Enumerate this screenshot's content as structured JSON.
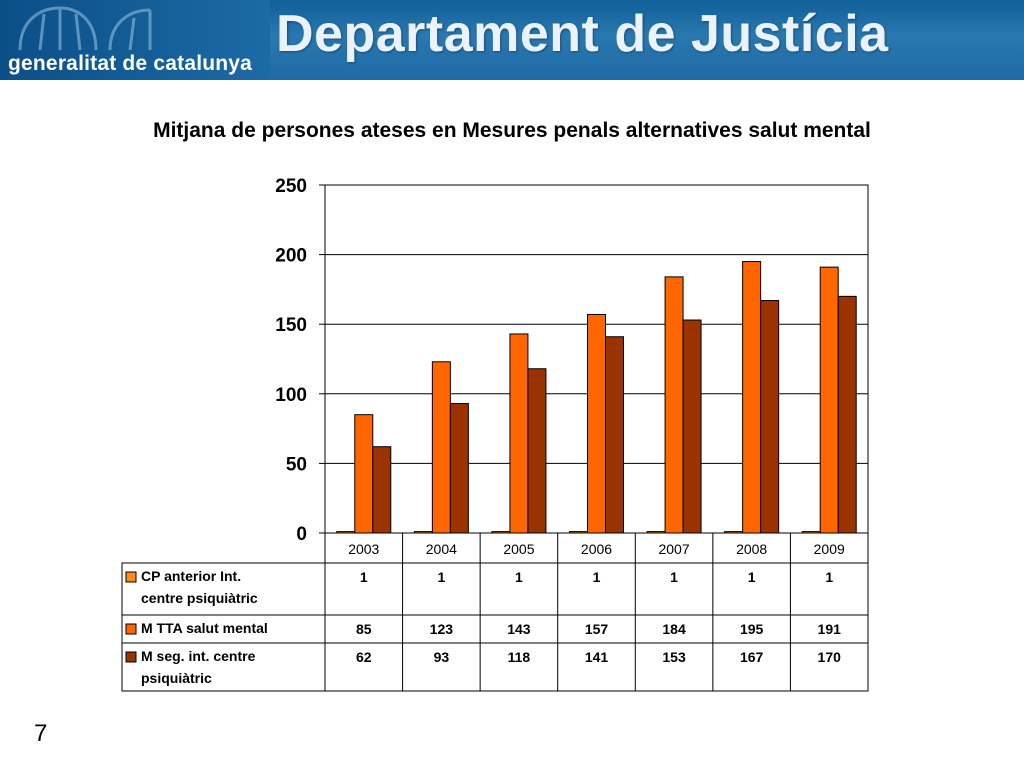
{
  "header": {
    "organization": "generalitat de catalunya",
    "department": "Departament de Justícia"
  },
  "slide_number": "7",
  "chart_data": {
    "type": "bar",
    "title": "Mitjana de persones ateses en Mesures penals alternatives salut mental",
    "categories": [
      "2003",
      "2004",
      "2005",
      "2006",
      "2007",
      "2008",
      "2009"
    ],
    "series": [
      {
        "name": "CP anterior Int. centre psiquiàtric",
        "color": "#ff8c1a",
        "values": [
          1,
          1,
          1,
          1,
          1,
          1,
          1
        ]
      },
      {
        "name": "M TTA salut mental",
        "color": "#ff6600",
        "values": [
          85,
          123,
          143,
          157,
          184,
          195,
          191
        ]
      },
      {
        "name": "M seg. int. centre psiquiàtric",
        "color": "#993300",
        "values": [
          62,
          93,
          118,
          141,
          153,
          167,
          170
        ]
      }
    ],
    "yticks": [
      "0",
      "50",
      "100",
      "150",
      "200",
      "250"
    ],
    "ylim": [
      0,
      250
    ],
    "grid": true,
    "legend": "data table"
  }
}
